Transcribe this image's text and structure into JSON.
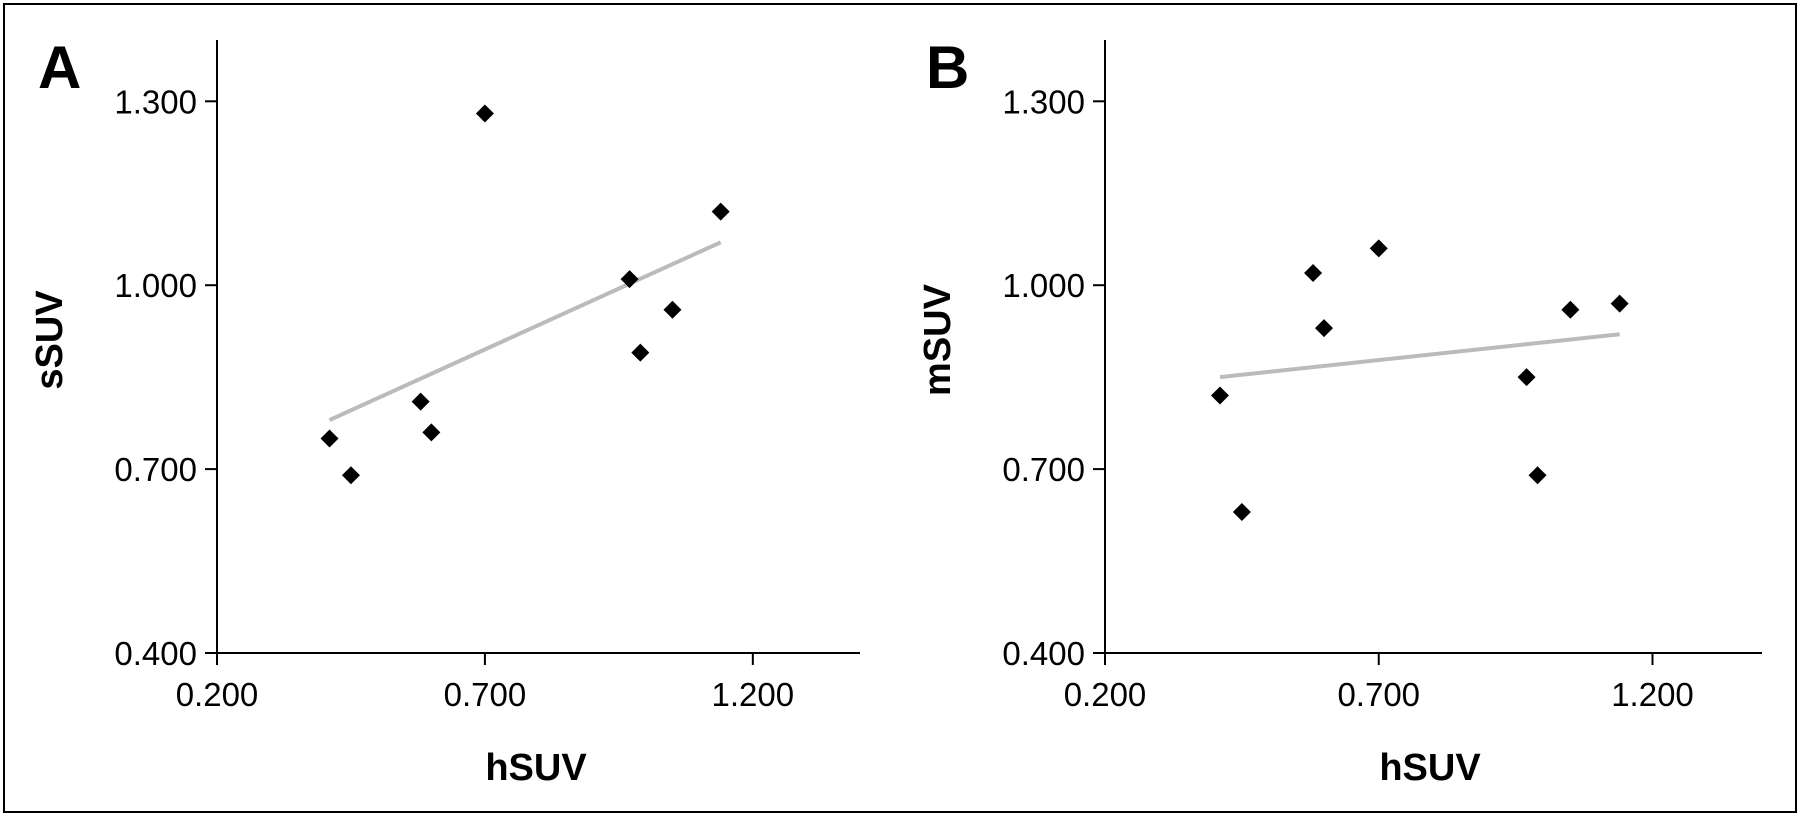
{
  "chart_data": [
    {
      "type": "scatter",
      "panel_label": "A",
      "xlabel": "hSUV",
      "ylabel": "sSUV",
      "xlim": [
        0.2,
        1.4
      ],
      "ylim": [
        0.4,
        1.4
      ],
      "x_ticks": [
        "0.200",
        "0.700",
        "1.200"
      ],
      "x_tick_values": [
        0.2,
        0.7,
        1.2
      ],
      "y_ticks": [
        "0.400",
        "0.700",
        "1.000",
        "1.300"
      ],
      "y_tick_values": [
        0.4,
        0.7,
        1.0,
        1.3
      ],
      "grid": false,
      "marker_color": "#000000",
      "trend_color": "#bbbbbb",
      "series": [
        {
          "points": [
            {
              "x": 0.41,
              "y": 0.75
            },
            {
              "x": 0.45,
              "y": 0.69
            },
            {
              "x": 0.58,
              "y": 0.81
            },
            {
              "x": 0.6,
              "y": 0.76
            },
            {
              "x": 0.7,
              "y": 1.28
            },
            {
              "x": 0.97,
              "y": 1.01
            },
            {
              "x": 0.99,
              "y": 0.89
            },
            {
              "x": 1.05,
              "y": 0.96
            },
            {
              "x": 1.14,
              "y": 1.12
            }
          ]
        }
      ],
      "trendline": {
        "x": [
          0.41,
          1.14
        ],
        "y": [
          0.78,
          1.07
        ]
      }
    },
    {
      "type": "scatter",
      "panel_label": "B",
      "xlabel": "hSUV",
      "ylabel": "mSUV",
      "xlim": [
        0.2,
        1.4
      ],
      "ylim": [
        0.4,
        1.4
      ],
      "x_ticks": [
        "0.200",
        "0.700",
        "1.200"
      ],
      "x_tick_values": [
        0.2,
        0.7,
        1.2
      ],
      "y_ticks": [
        "0.400",
        "0.700",
        "1.000",
        "1.300"
      ],
      "y_tick_values": [
        0.4,
        0.7,
        1.0,
        1.3
      ],
      "grid": false,
      "marker_color": "#000000",
      "trend_color": "#bbbbbb",
      "series": [
        {
          "points": [
            {
              "x": 0.41,
              "y": 0.82
            },
            {
              "x": 0.45,
              "y": 0.63
            },
            {
              "x": 0.58,
              "y": 1.02
            },
            {
              "x": 0.6,
              "y": 0.93
            },
            {
              "x": 0.7,
              "y": 1.06
            },
            {
              "x": 0.97,
              "y": 0.85
            },
            {
              "x": 0.99,
              "y": 0.69
            },
            {
              "x": 1.05,
              "y": 0.96
            },
            {
              "x": 1.14,
              "y": 0.97
            }
          ]
        }
      ],
      "trendline": {
        "x": [
          0.41,
          1.14
        ],
        "y": [
          0.85,
          0.92
        ]
      }
    }
  ]
}
